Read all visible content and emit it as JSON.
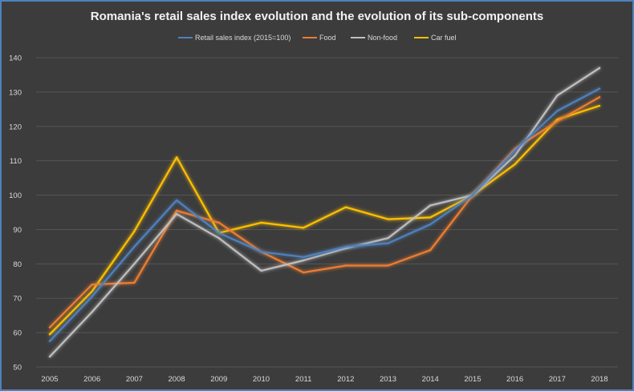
{
  "chart_data": {
    "type": "line",
    "title": "Romania's retail sales index evolution and the evolution of its sub-components",
    "xlabel": "",
    "ylabel": "",
    "categories": [
      "2005",
      "2006",
      "2007",
      "2008",
      "2009",
      "2010",
      "2011",
      "2012",
      "2013",
      "2014",
      "2015",
      "2016",
      "2017",
      "2018"
    ],
    "ylim": [
      50,
      140
    ],
    "yticks": [
      50,
      60,
      70,
      80,
      90,
      100,
      110,
      120,
      130,
      140
    ],
    "grid": true,
    "legend_position": "top",
    "series": [
      {
        "name": "Retail sales index (2015=100)",
        "color": "#4f81bd",
        "values": [
          57.5,
          70.5,
          85,
          98.5,
          89,
          83.5,
          82,
          85,
          86,
          91.5,
          100,
          113,
          124.5,
          131
        ]
      },
      {
        "name": "Food",
        "color": "#ed7d31",
        "values": [
          61.5,
          74,
          74.5,
          95.5,
          92,
          83.5,
          77.5,
          79.5,
          79.5,
          84,
          100,
          113.5,
          121.5,
          128.5
        ]
      },
      {
        "name": "Non-food",
        "color": "#bfbfbf",
        "values": [
          53,
          66,
          80,
          94.5,
          87.5,
          78,
          81,
          84.5,
          87.5,
          97,
          100,
          111.5,
          129,
          137
        ]
      },
      {
        "name": "Car fuel",
        "color": "#ffc000",
        "values": [
          59.5,
          72,
          89.5,
          111,
          89,
          92,
          90.5,
          96.5,
          93,
          93.5,
          100,
          109,
          122,
          126
        ]
      }
    ]
  }
}
